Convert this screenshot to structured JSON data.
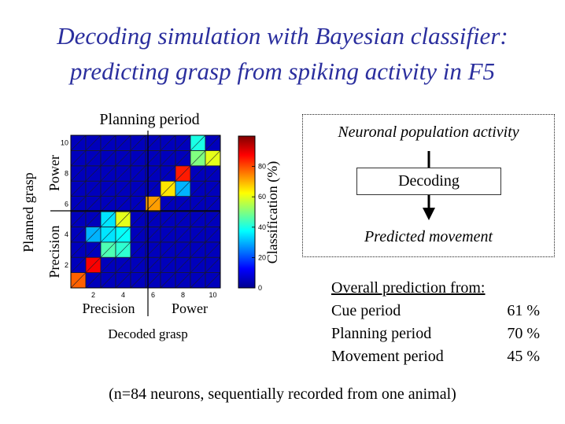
{
  "title": {
    "line1": "Decoding simulation with Bayesian classifier:",
    "line2": "predicting grasp from spiking activity in F5"
  },
  "chart_data": {
    "type": "heatmap",
    "title": "Planning period",
    "xlabel": "Decoded grasp",
    "ylabel": "Planned grasp",
    "x_ticks": [
      "2",
      "4",
      "6",
      "8",
      "10"
    ],
    "y_ticks": [
      "2",
      "4",
      "6",
      "8",
      "10"
    ],
    "x_groups": [
      "Precision",
      "Power"
    ],
    "y_groups": [
      "Precision",
      "Power"
    ],
    "colorbar": {
      "label": "Classification (%)",
      "ticks": [
        "0",
        "20",
        "40",
        "60",
        "80"
      ],
      "range": [
        0,
        100
      ]
    },
    "colormap": "jet",
    "rows": 10,
    "cols": 10,
    "values": [
      [
        78,
        0,
        0,
        0,
        0,
        0,
        0,
        0,
        0,
        0
      ],
      [
        0,
        88,
        0,
        0,
        0,
        0,
        0,
        0,
        0,
        0
      ],
      [
        0,
        0,
        45,
        42,
        0,
        0,
        0,
        0,
        0,
        0
      ],
      [
        0,
        30,
        35,
        38,
        0,
        0,
        0,
        0,
        0,
        0
      ],
      [
        0,
        0,
        35,
        60,
        0,
        0,
        0,
        0,
        0,
        0
      ],
      [
        0,
        0,
        0,
        0,
        0,
        72,
        0,
        0,
        0,
        0
      ],
      [
        0,
        0,
        0,
        0,
        0,
        0,
        65,
        30,
        0,
        0
      ],
      [
        0,
        0,
        0,
        0,
        0,
        0,
        0,
        85,
        0,
        0
      ],
      [
        0,
        0,
        0,
        0,
        0,
        0,
        0,
        0,
        50,
        60
      ],
      [
        0,
        0,
        0,
        0,
        0,
        5,
        0,
        0,
        40,
        0
      ]
    ]
  },
  "diagram": {
    "input": "Neuronal population activity",
    "process": "Decoding",
    "output": "Predicted movement"
  },
  "prediction": {
    "heading": "Overall prediction from:",
    "rows": [
      {
        "label": "Cue period",
        "value": "61 %"
      },
      {
        "label": "Planning period",
        "value": "70 %"
      },
      {
        "label": "Movement period",
        "value": "45 %"
      }
    ]
  },
  "footer": "(n=84 neurons, sequentially recorded from one animal)",
  "colors": {
    "title": "#2b2f9e",
    "group_divider": "#000000"
  }
}
